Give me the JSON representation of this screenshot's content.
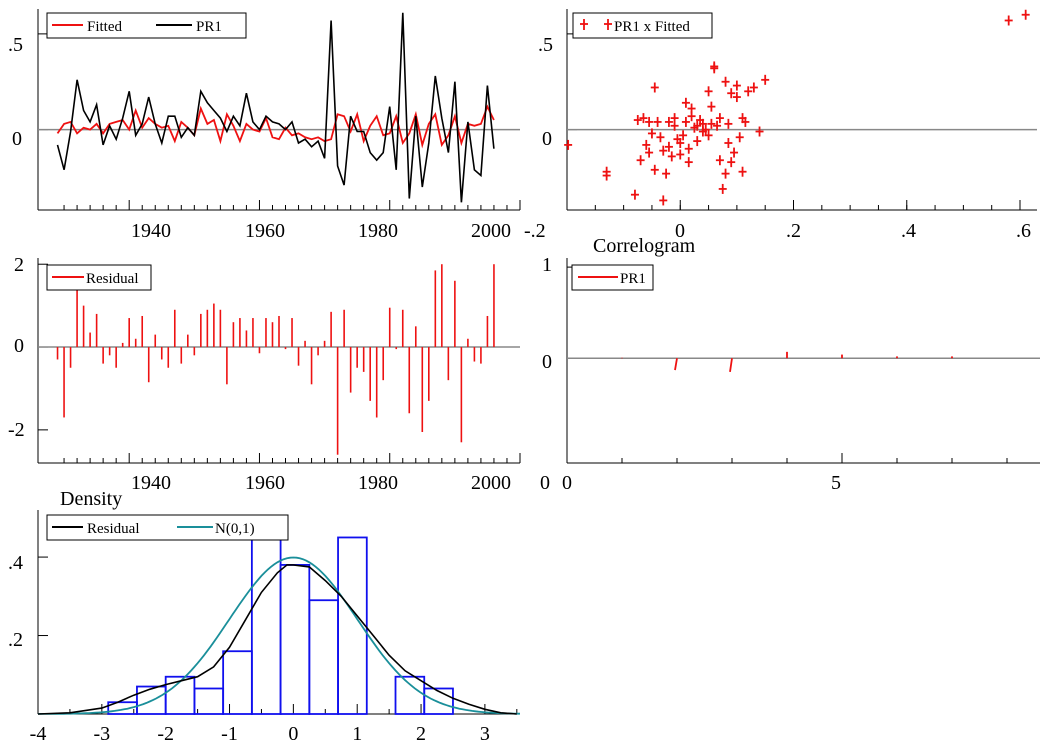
{
  "colors": {
    "red": "#ee1111",
    "black": "#000000",
    "blue": "#1010ee",
    "teal": "#1a8f9a",
    "zeroline": "#888888"
  },
  "chart_data": [
    {
      "id": "fitted_actual",
      "type": "line",
      "title": "",
      "xlim": [
        1926,
        2000
      ],
      "ylim": [
        -0.42,
        0.63
      ],
      "xticks": [
        1940,
        1960,
        1980,
        2000
      ],
      "xtick_labels": [
        "1940",
        "1960",
        "1980",
        "2000"
      ],
      "yticks": [
        0.5,
        0
      ],
      "ytick_labels": [
        ".5",
        "0"
      ],
      "legend": {
        "placement": "top-left",
        "entries": [
          "Fitted",
          "PR1"
        ]
      },
      "x": [
        1929,
        1930,
        1931,
        1932,
        1933,
        1934,
        1935,
        1936,
        1937,
        1938,
        1939,
        1940,
        1941,
        1942,
        1943,
        1944,
        1945,
        1946,
        1947,
        1948,
        1949,
        1950,
        1951,
        1952,
        1953,
        1954,
        1955,
        1956,
        1957,
        1958,
        1959,
        1960,
        1961,
        1962,
        1963,
        1964,
        1965,
        1966,
        1967,
        1968,
        1969,
        1970,
        1971,
        1972,
        1973,
        1974,
        1975,
        1976,
        1977,
        1978,
        1979,
        1980,
        1981,
        1982,
        1983,
        1984,
        1985,
        1986,
        1987,
        1988,
        1989,
        1990,
        1991,
        1992,
        1993,
        1994,
        1995,
        1996
      ],
      "series": [
        {
          "name": "Fitted",
          "values": [
            -0.02,
            0.03,
            0.04,
            -0.02,
            0.01,
            0.0,
            0.03,
            -0.02,
            0.03,
            0.04,
            0.05,
            0.0,
            0.1,
            0.01,
            0.06,
            0.03,
            0.01,
            0.02,
            -0.06,
            0.04,
            0.01,
            -0.03,
            0.11,
            0.03,
            0.05,
            -0.06,
            0.08,
            0.02,
            -0.06,
            0.03,
            0.0,
            -0.01,
            0.06,
            -0.04,
            -0.05,
            0.01,
            -0.03,
            -0.02,
            -0.04,
            -0.05,
            -0.04,
            -0.06,
            -0.05,
            0.08,
            0.07,
            -0.01,
            0.08,
            -0.06,
            0.02,
            0.07,
            -0.03,
            -0.02,
            0.07,
            -0.07,
            -0.02,
            0.08,
            -0.08,
            0.03,
            0.08,
            -0.08,
            -0.03,
            0.07,
            -0.07,
            0.03,
            0.02,
            0.03,
            0.12,
            0.05
          ]
        },
        {
          "name": "PR1",
          "values": [
            -0.08,
            -0.21,
            -0.01,
            0.26,
            0.1,
            0.04,
            0.13,
            -0.08,
            0.02,
            -0.05,
            0.06,
            0.2,
            -0.03,
            0.03,
            0.17,
            0.03,
            -0.07,
            0.07,
            0.07,
            -0.04,
            0.01,
            -0.03,
            0.2,
            0.14,
            0.1,
            0.06,
            -0.01,
            0.07,
            0.02,
            0.19,
            0.04,
            0.0,
            0.07,
            0.04,
            0.03,
            0.0,
            0.04,
            -0.07,
            -0.05,
            -0.09,
            -0.06,
            -0.15,
            0.57,
            -0.19,
            -0.29,
            0.07,
            -0.01,
            -0.01,
            -0.12,
            -0.16,
            -0.12,
            0.12,
            -0.21,
            0.61,
            -0.36,
            0.07,
            -0.3,
            -0.07,
            0.28,
            0.06,
            -0.12,
            0.25,
            -0.38,
            0.04,
            -0.21,
            -0.24,
            0.23,
            -0.1
          ]
        }
      ]
    },
    {
      "id": "scatter",
      "type": "scatter",
      "title": "",
      "xlim": [
        -0.2,
        0.63
      ],
      "ylim": [
        -0.42,
        0.63
      ],
      "xticks": [
        -0.2,
        0,
        0.2,
        0.4,
        0.6
      ],
      "xtick_labels": [
        "-.2",
        "0",
        ".2",
        ".4",
        ".6"
      ],
      "yticks": [
        0.5,
        0
      ],
      "ytick_labels": [
        ".5",
        "0"
      ],
      "legend": {
        "placement": "top-left",
        "entries": [
          "PR1 x Fitted"
        ]
      },
      "points": [
        [
          -0.198,
          -0.08
        ],
        [
          -0.13,
          -0.24
        ],
        [
          -0.13,
          -0.22
        ],
        [
          -0.08,
          -0.34
        ],
        [
          -0.075,
          0.05
        ],
        [
          -0.07,
          -0.16
        ],
        [
          -0.065,
          0.06
        ],
        [
          -0.06,
          -0.08
        ],
        [
          -0.055,
          0.04
        ],
        [
          -0.055,
          -0.12
        ],
        [
          -0.05,
          -0.02
        ],
        [
          -0.045,
          -0.21
        ],
        [
          -0.045,
          0.22
        ],
        [
          -0.04,
          0.04
        ],
        [
          -0.035,
          -0.04
        ],
        [
          -0.03,
          -0.11
        ],
        [
          -0.03,
          -0.37
        ],
        [
          -0.025,
          -0.23
        ],
        [
          -0.02,
          -0.09
        ],
        [
          -0.02,
          0.04
        ],
        [
          -0.015,
          -0.14
        ],
        [
          -0.01,
          0.02
        ],
        [
          -0.01,
          0.06
        ],
        [
          -0.005,
          -0.05
        ],
        [
          0.0,
          -0.07
        ],
        [
          0.0,
          -0.13
        ],
        [
          0.005,
          -0.03
        ],
        [
          0.01,
          0.04
        ],
        [
          0.01,
          0.14
        ],
        [
          0.015,
          -0.17
        ],
        [
          0.015,
          -0.1
        ],
        [
          0.02,
          0.07
        ],
        [
          0.02,
          0.11
        ],
        [
          0.025,
          0.01
        ],
        [
          0.03,
          0.02
        ],
        [
          0.03,
          -0.06
        ],
        [
          0.035,
          0.05
        ],
        [
          0.04,
          -0.01
        ],
        [
          0.04,
          0.03
        ],
        [
          0.045,
          0.0
        ],
        [
          0.05,
          -0.03
        ],
        [
          0.05,
          0.2
        ],
        [
          0.055,
          0.03
        ],
        [
          0.055,
          0.12
        ],
        [
          0.06,
          0.33
        ],
        [
          0.06,
          0.32
        ],
        [
          0.065,
          0.02
        ],
        [
          0.07,
          -0.16
        ],
        [
          0.07,
          0.06
        ],
        [
          0.075,
          -0.31
        ],
        [
          0.08,
          -0.23
        ],
        [
          0.08,
          0.25
        ],
        [
          0.085,
          -0.07
        ],
        [
          0.085,
          0.03
        ],
        [
          0.09,
          -0.17
        ],
        [
          0.09,
          0.19
        ],
        [
          0.095,
          -0.12
        ],
        [
          0.1,
          0.17
        ],
        [
          0.1,
          0.23
        ],
        [
          0.105,
          -0.04
        ],
        [
          0.11,
          0.06
        ],
        [
          0.11,
          -0.22
        ],
        [
          0.115,
          0.04
        ],
        [
          0.12,
          0.2
        ],
        [
          0.13,
          0.22
        ],
        [
          0.14,
          -0.01
        ],
        [
          0.15,
          0.26
        ],
        [
          0.58,
          0.57
        ],
        [
          0.61,
          0.6
        ]
      ]
    },
    {
      "id": "residual",
      "type": "bar",
      "title": "",
      "xlim": [
        1926,
        2000
      ],
      "ylim": [
        -2.8,
        2.15
      ],
      "xticks": [
        1940,
        1960,
        1980,
        2000
      ],
      "xtick_labels": [
        "1940",
        "1960",
        "1980",
        "2000"
      ],
      "yticks": [
        2,
        0,
        -2
      ],
      "ytick_labels": [
        "2",
        "0",
        "-2"
      ],
      "legend": {
        "placement": "top-left",
        "entries": [
          "Residual"
        ]
      },
      "x": [
        1929,
        1930,
        1931,
        1932,
        1933,
        1934,
        1935,
        1936,
        1937,
        1938,
        1939,
        1940,
        1941,
        1942,
        1943,
        1944,
        1945,
        1946,
        1947,
        1948,
        1949,
        1950,
        1951,
        1952,
        1953,
        1954,
        1955,
        1956,
        1957,
        1958,
        1959,
        1960,
        1961,
        1962,
        1963,
        1964,
        1965,
        1966,
        1967,
        1968,
        1969,
        1970,
        1971,
        1972,
        1973,
        1974,
        1975,
        1976,
        1977,
        1978,
        1979,
        1980,
        1981,
        1982,
        1983,
        1984,
        1985,
        1986,
        1987,
        1988,
        1989,
        1990,
        1991,
        1992,
        1993,
        1994,
        1995,
        1996
      ],
      "values": [
        -0.3,
        -1.7,
        -0.5,
        1.6,
        1.0,
        0.35,
        0.8,
        -0.4,
        -0.2,
        -0.5,
        0.1,
        0.7,
        0.2,
        0.75,
        -0.85,
        0.3,
        -0.3,
        -0.5,
        0.9,
        -0.4,
        0.3,
        -0.2,
        0.8,
        0.9,
        1.05,
        0.9,
        -0.9,
        0.6,
        0.7,
        0.4,
        0.7,
        -0.15,
        0.7,
        0.6,
        0.75,
        -0.05,
        0.7,
        -0.45,
        0.15,
        -0.9,
        -0.2,
        0.15,
        0.85,
        -2.6,
        0.9,
        -1.1,
        -0.5,
        -0.6,
        -1.3,
        -1.7,
        -0.8,
        0.95,
        -0.05,
        0.9,
        -1.6,
        0.5,
        -2.05,
        -1.3,
        1.85,
        2.0,
        -0.8,
        1.6,
        -2.3,
        0.2,
        -0.35,
        -0.4,
        0.75,
        2.0
      ]
    },
    {
      "id": "correlogram",
      "type": "bar",
      "title": "Correlogram",
      "xlim": [
        0,
        8.6
      ],
      "ylim": [
        -1.15,
        1.1
      ],
      "xticks": [
        0,
        5
      ],
      "xtick_labels": [
        "0",
        "5"
      ],
      "yticks": [
        1,
        0
      ],
      "ytick_labels": [
        "1",
        "0"
      ],
      "legend": {
        "placement": "top-left",
        "entries": [
          "PR1"
        ]
      },
      "lags": [
        1,
        2,
        3,
        4,
        5,
        6,
        7
      ],
      "values": [
        0.005,
        -0.13,
        -0.15,
        0.07,
        0.04,
        0.02,
        0.02
      ]
    },
    {
      "id": "density",
      "type": "area",
      "title": "Density",
      "xlim": [
        -4,
        3.55
      ],
      "ylim": [
        0,
        0.52
      ],
      "xticks": [
        -4,
        -3,
        -2,
        -1,
        0,
        1,
        2,
        3
      ],
      "xtick_labels": [
        "-4",
        "-3",
        "-2",
        "-1",
        "0",
        "1",
        "2",
        "3"
      ],
      "yticks": [
        0.4,
        0.2
      ],
      "ytick_labels": [
        ".4",
        ".2"
      ],
      "legend": {
        "placement": "top-left",
        "entries": [
          "Residual",
          "N(0,1)"
        ]
      },
      "histogram": {
        "bin_edges": [
          -2.9,
          -2.45,
          -2.0,
          -1.55,
          -1.1,
          -0.65,
          -0.2,
          0.25,
          0.7,
          1.15,
          1.6,
          2.05,
          2.5
        ],
        "heights": [
          0.03,
          0.07,
          0.095,
          0.065,
          0.16,
          0.48,
          0.38,
          0.29,
          0.45,
          0.0,
          0.095,
          0.065
        ]
      },
      "kde": {
        "x": [
          -4,
          -3.5,
          -3,
          -2.75,
          -2.5,
          -2.25,
          -2,
          -1.75,
          -1.5,
          -1.25,
          -1,
          -0.75,
          -0.5,
          -0.25,
          -0.1,
          0,
          0.25,
          0.5,
          0.75,
          1,
          1.25,
          1.5,
          1.75,
          2,
          2.25,
          2.5,
          2.75,
          3,
          3.25,
          3.5
        ],
        "y": [
          0.0,
          0.003,
          0.015,
          0.03,
          0.048,
          0.063,
          0.075,
          0.085,
          0.095,
          0.12,
          0.17,
          0.24,
          0.31,
          0.36,
          0.38,
          0.38,
          0.375,
          0.34,
          0.3,
          0.25,
          0.2,
          0.15,
          0.11,
          0.085,
          0.06,
          0.04,
          0.025,
          0.012,
          0.003,
          0.0
        ]
      }
    }
  ]
}
